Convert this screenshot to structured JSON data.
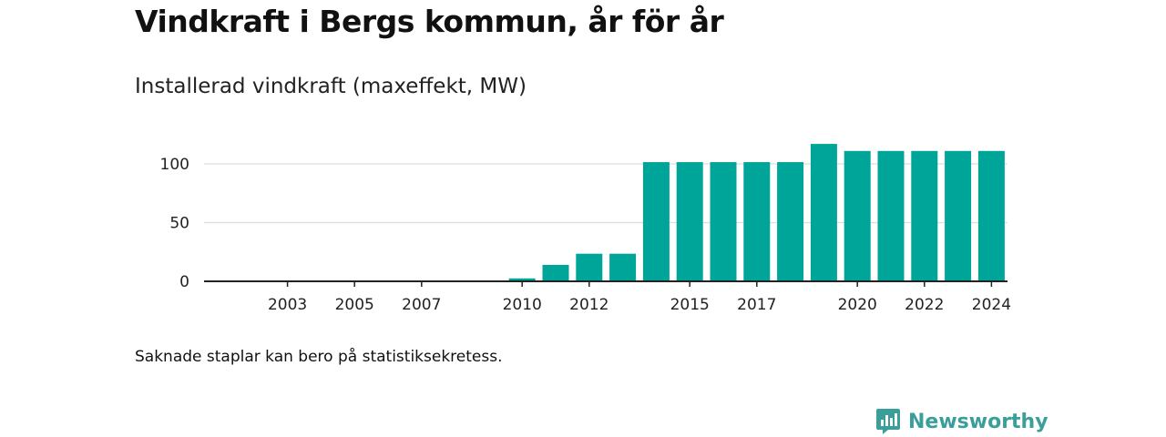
{
  "title": "Vindkraft i Bergs kommun, år för år",
  "subtitle": "Installerad vindkraft (maxeffekt, MW)",
  "footnote": "Saknade staplar kan bero på statistiksekretess.",
  "brand": {
    "name": "Newsworthy",
    "icon": "newsworthy-logo-icon",
    "color": "#3a9e9a"
  },
  "colors": {
    "bar": "#00a59a",
    "grid": "#dddddd",
    "axis": "#222222"
  },
  "chart_data": {
    "type": "bar",
    "title": "Installerad vindkraft (maxeffekt, MW)",
    "xlabel": "",
    "ylabel": "",
    "categories": [
      2001,
      2002,
      2003,
      2004,
      2005,
      2006,
      2007,
      2008,
      2009,
      2010,
      2011,
      2012,
      2013,
      2014,
      2015,
      2016,
      2017,
      2018,
      2019,
      2020,
      2021,
      2022,
      2023,
      2024
    ],
    "values": [
      null,
      null,
      null,
      null,
      null,
      null,
      null,
      null,
      null,
      2.5,
      14,
      23.5,
      23.5,
      101.5,
      101.5,
      101.5,
      101.5,
      101.5,
      117,
      111,
      111,
      111,
      111,
      111
    ],
    "x_ticks": [
      2003,
      2005,
      2007,
      2010,
      2012,
      2015,
      2017,
      2020,
      2022,
      2024
    ],
    "y_ticks": [
      0,
      50,
      100
    ],
    "ylim": [
      0,
      120
    ],
    "grid": true,
    "legend": "none"
  }
}
